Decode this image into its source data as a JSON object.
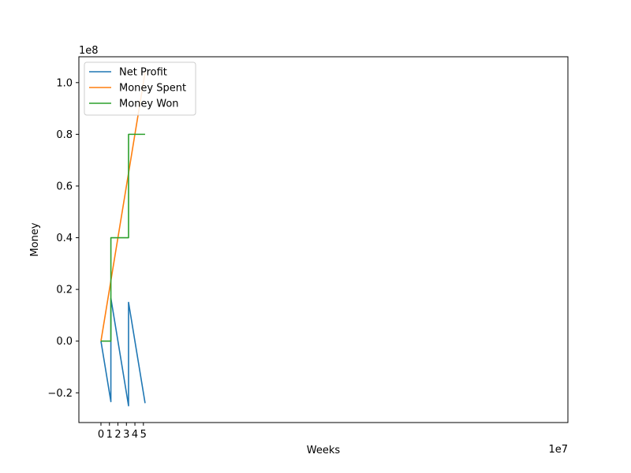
{
  "chart_data": {
    "type": "line",
    "xlabel": "Weeks",
    "ylabel": "Money",
    "x_multiplier": "1e7",
    "y_multiplier": "1e8",
    "xlim": [
      -2.6,
      55.0
    ],
    "ylim": [
      -0.315,
      1.1
    ],
    "x_ticks": [
      0,
      1,
      2,
      3,
      4,
      5
    ],
    "y_ticks": [
      -0.2,
      0.0,
      0.2,
      0.4,
      0.6,
      0.8,
      1.0
    ],
    "x_tick_labels": [
      "0",
      "1",
      "2",
      "3",
      "4",
      "5"
    ],
    "y_tick_labels": [
      "−0.2",
      "0.0",
      "0.2",
      "0.4",
      "0.6",
      "0.8",
      "1.0"
    ],
    "grid": false,
    "legend_position": "upper-left",
    "series": [
      {
        "name": "Net Profit",
        "color": "#1f77b4",
        "x": [
          0,
          1.17,
          1.17,
          3.25,
          3.25,
          5.2
        ],
        "y": [
          0,
          -0.234,
          0.166,
          -0.25,
          0.15,
          -0.24
        ]
      },
      {
        "name": "Money Spent",
        "color": "#ff7f0e",
        "x": [
          0,
          5.2
        ],
        "y": [
          0,
          1.04
        ]
      },
      {
        "name": "Money Won",
        "color": "#2ca02c",
        "x": [
          0,
          1.17,
          1.17,
          3.25,
          3.25,
          5.2
        ],
        "y": [
          0,
          0,
          0.4,
          0.4,
          0.8,
          0.8
        ]
      }
    ]
  }
}
